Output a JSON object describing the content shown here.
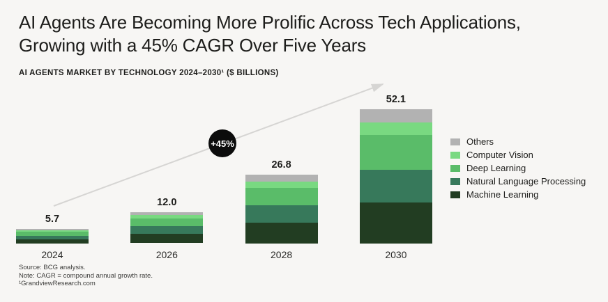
{
  "header": {
    "title_line1": "AI Agents Are Becoming More Prolific Across Tech Applications,",
    "title_line2": "Growing with a 45% CAGR Over Five Years",
    "subtitle": "AI AGENTS MARKET BY TECHNOLOGY 2024–2030¹ ($ BILLIONS)"
  },
  "annotation": {
    "cagr_badge": "+45%"
  },
  "chart_data": {
    "type": "bar",
    "stacked": true,
    "title": "AI Agents Market by Technology 2024–2030 ($ billions)",
    "categories": [
      "2024",
      "2026",
      "2028",
      "2030"
    ],
    "totals": [
      "5.7",
      "12.0",
      "26.8",
      "52.1"
    ],
    "series": [
      {
        "name": "Others",
        "color": "#b2b2b2",
        "values": [
          0.6,
          1.2,
          2.7,
          5.2
        ]
      },
      {
        "name": "Computer Vision",
        "color": "#79d981",
        "values": [
          0.5,
          1.1,
          2.5,
          4.9
        ]
      },
      {
        "name": "Deep Learning",
        "color": "#5abc69",
        "values": [
          1.5,
          3.1,
          6.8,
          13.3
        ]
      },
      {
        "name": "Natural Language Processing",
        "color": "#37795b",
        "values": [
          1.4,
          3.0,
          6.6,
          12.9
        ]
      },
      {
        "name": "Machine Learning",
        "color": "#223d22",
        "values": [
          1.7,
          3.6,
          8.2,
          15.8
        ]
      }
    ],
    "legend_position": "right",
    "ylim": [
      0,
      55
    ],
    "grid": false
  },
  "footer": {
    "source": "Source: BCG analysis.",
    "note": "Note: CAGR = compound annual growth rate.",
    "reference": "¹GrandviewResearch.com"
  },
  "colors": {
    "background": "#f7f6f4",
    "arrow": "#d6d5d3",
    "badge_bg": "#0c0c0c",
    "badge_text": "#ffffff",
    "text": "#1d1d1b"
  }
}
